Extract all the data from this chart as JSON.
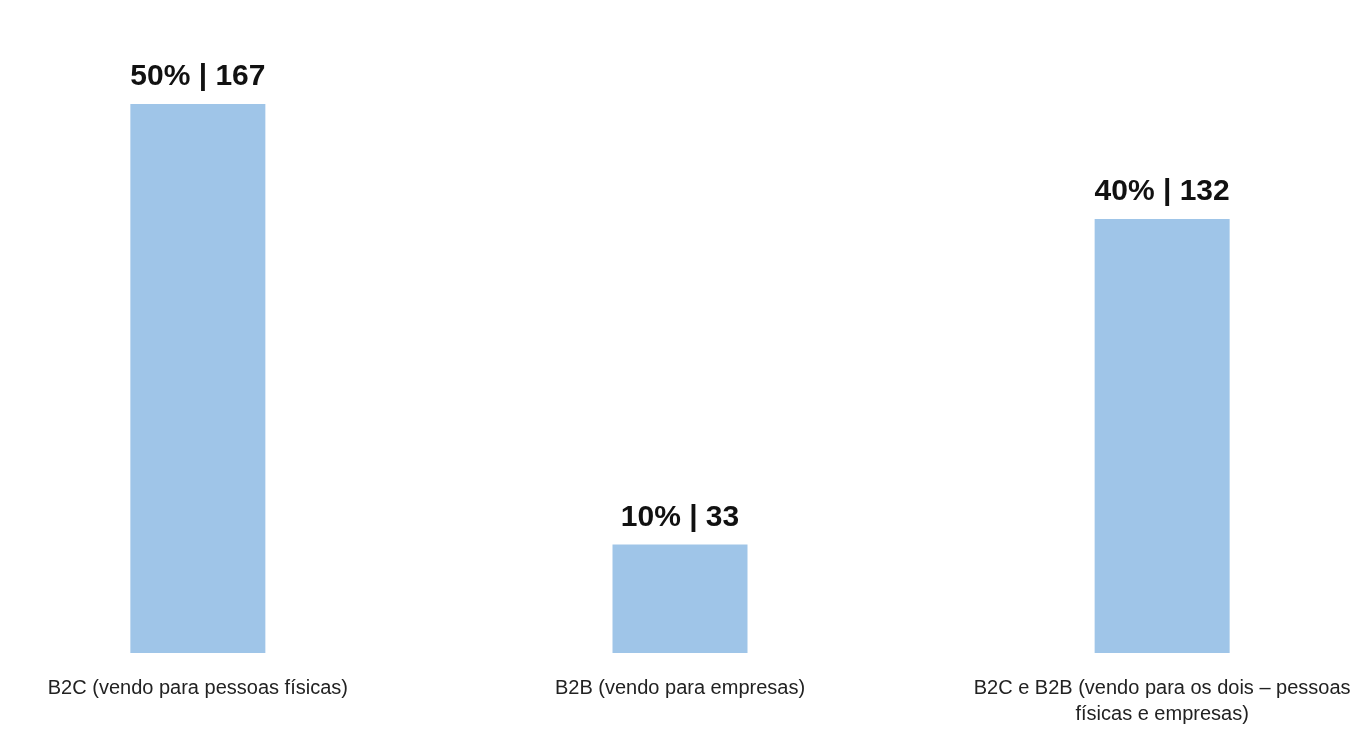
{
  "chart_data": {
    "type": "bar",
    "categories": [
      "B2C (vendo para pessoas físicas)",
      "B2B (vendo para empresas)",
      "B2C e B2B (vendo para os dois – pessoas físicas e empresas)"
    ],
    "values": [
      167,
      33,
      132
    ],
    "value_labels": [
      "50% | 167",
      "10% | 33",
      "40% | 132"
    ],
    "color": "#9fc5e8",
    "grid": false
  }
}
